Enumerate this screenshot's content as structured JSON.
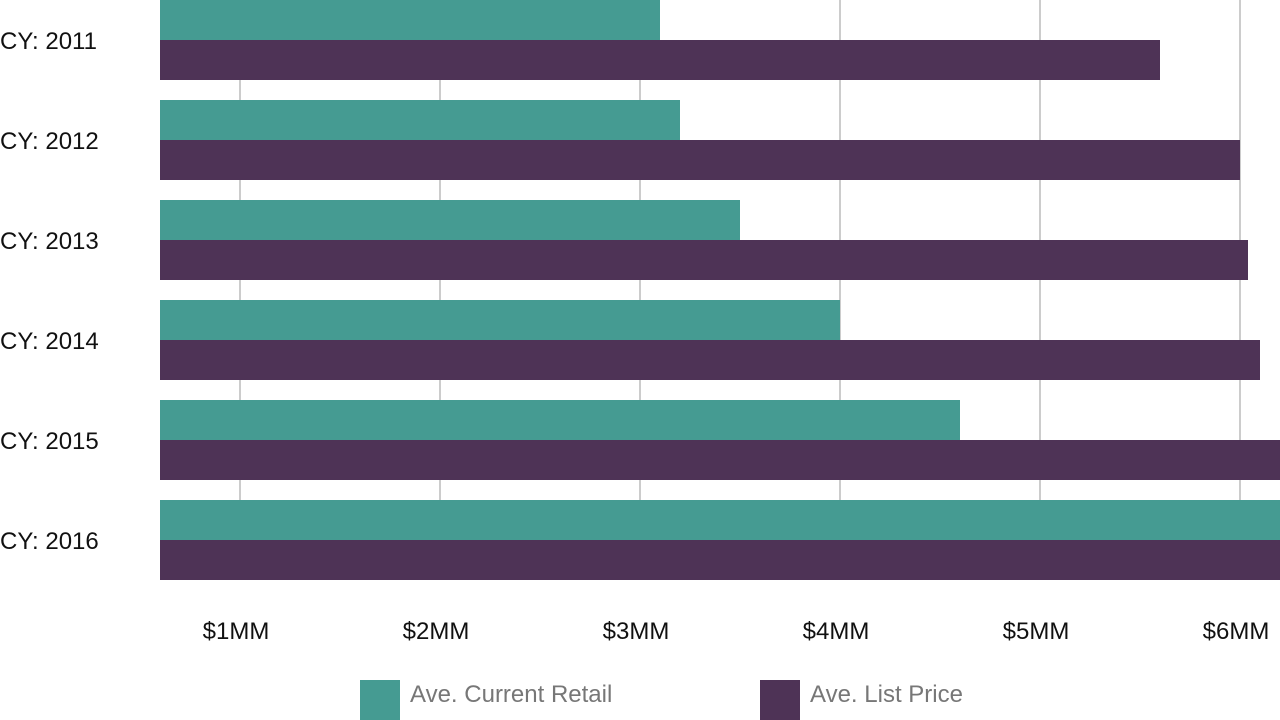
{
  "chart_data": {
    "type": "bar",
    "orientation": "horizontal",
    "categories": [
      "CY: 2011",
      "CY: 2012",
      "CY: 2013",
      "CY: 2014",
      "CY: 2015",
      "CY: 2016"
    ],
    "series": [
      {
        "name": "Ave. Current Retail",
        "color": "#459b92",
        "values": [
          3.1,
          3.2,
          3.5,
          4.0,
          4.6,
          6.2
        ]
      },
      {
        "name": "Ave. List Price",
        "color": "#4e3356",
        "values": [
          5.6,
          6.0,
          6.04,
          6.1,
          6.3,
          6.3
        ]
      }
    ],
    "x_ticks": [
      {
        "value": 1,
        "label": "$1MM"
      },
      {
        "value": 2,
        "label": "$2MM"
      },
      {
        "value": 3,
        "label": "$3MM"
      },
      {
        "value": 4,
        "label": "$4MM"
      },
      {
        "value": 5,
        "label": "$5MM"
      },
      {
        "value": 6,
        "label": "$6MM"
      }
    ],
    "xlim": [
      0.6,
      6.2
    ],
    "title": "",
    "xlabel": "",
    "ylabel": "",
    "grid": true,
    "legend_position": "bottom"
  }
}
